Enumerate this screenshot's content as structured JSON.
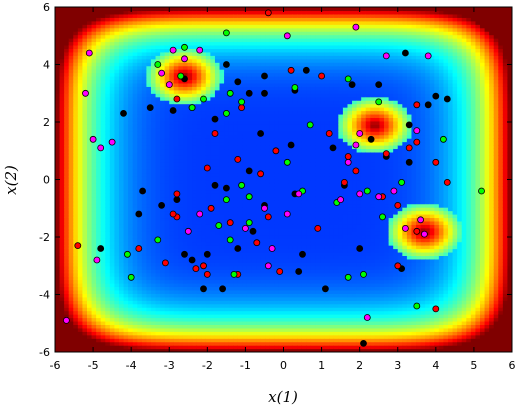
{
  "chart_data": {
    "type": "scatter",
    "title": "",
    "xlabel": "x(1)",
    "ylabel": "x(2)",
    "xlim": [
      -6,
      6
    ],
    "ylim": [
      -6,
      6
    ],
    "xticks": [
      "-6",
      "-5",
      "-4",
      "-3",
      "-2",
      "-1",
      "0",
      "1",
      "2",
      "3",
      "4",
      "5",
      "6"
    ],
    "yticks": [
      "-6",
      "-4",
      "-2",
      "0",
      "2",
      "4",
      "6"
    ],
    "background": "heatmap",
    "background_peaks": [
      {
        "x": -2.6,
        "y": 3.6
      },
      {
        "x": 2.4,
        "y": 1.9
      },
      {
        "x": 3.7,
        "y": -1.8
      }
    ],
    "grid": false,
    "legend": "none",
    "colors": {
      "black": "#000000",
      "red": "#ff0000",
      "green": "#00ff00",
      "magenta": "#ff00ff"
    },
    "series": [
      {
        "color": "black",
        "points": [
          [
            -4.2,
            2.3
          ],
          [
            -3.5,
            2.5
          ],
          [
            -2.9,
            2.4
          ],
          [
            -2.4,
            2.5
          ],
          [
            -1.5,
            4.0
          ],
          [
            -1.2,
            3.4
          ],
          [
            -0.9,
            3.0
          ],
          [
            -0.5,
            3.6
          ],
          [
            -0.5,
            3.0
          ],
          [
            0.3,
            3.1
          ],
          [
            0.6,
            3.8
          ],
          [
            1.8,
            3.3
          ],
          [
            2.5,
            3.3
          ],
          [
            3.2,
            4.4
          ],
          [
            3.8,
            2.6
          ],
          [
            4.0,
            2.9
          ],
          [
            4.3,
            2.8
          ],
          [
            2.3,
            1.4
          ],
          [
            3.3,
            1.9
          ],
          [
            -2.6,
            3.5
          ],
          [
            -1.8,
            2.1
          ],
          [
            -0.6,
            1.6
          ],
          [
            0.2,
            1.2
          ],
          [
            1.3,
            1.1
          ],
          [
            2.7,
            0.8
          ],
          [
            3.3,
            0.6
          ],
          [
            -3.7,
            -0.4
          ],
          [
            -3.2,
            -0.9
          ],
          [
            -2.8,
            -0.7
          ],
          [
            -1.8,
            -0.2
          ],
          [
            -1.5,
            -0.3
          ],
          [
            -0.9,
            0.3
          ],
          [
            -0.5,
            -0.9
          ],
          [
            0.3,
            -0.5
          ],
          [
            1.6,
            -0.2
          ],
          [
            -4.8,
            -2.4
          ],
          [
            -3.8,
            -1.2
          ],
          [
            -2.6,
            -2.6
          ],
          [
            -2.4,
            -2.8
          ],
          [
            -2.0,
            -2.6
          ],
          [
            -1.2,
            -2.4
          ],
          [
            -1.6,
            -3.8
          ],
          [
            -2.1,
            -3.8
          ],
          [
            -0.8,
            -1.8
          ],
          [
            0.5,
            -2.6
          ],
          [
            0.4,
            -3.2
          ],
          [
            1.1,
            -3.8
          ],
          [
            2.0,
            -2.4
          ],
          [
            3.1,
            -3.1
          ],
          [
            2.1,
            -5.7
          ]
        ]
      },
      {
        "color": "red",
        "points": [
          [
            -0.4,
            5.8
          ],
          [
            0.2,
            3.8
          ],
          [
            1.0,
            3.6
          ],
          [
            -1.1,
            2.5
          ],
          [
            -2.8,
            2.8
          ],
          [
            3.5,
            2.6
          ],
          [
            3.3,
            1.1
          ],
          [
            3.5,
            1.3
          ],
          [
            -2.0,
            0.4
          ],
          [
            -1.8,
            1.6
          ],
          [
            -1.2,
            0.7
          ],
          [
            -0.2,
            1.0
          ],
          [
            1.2,
            1.6
          ],
          [
            1.9,
            0.3
          ],
          [
            2.7,
            0.9
          ],
          [
            4.0,
            0.6
          ],
          [
            4.3,
            -0.1
          ],
          [
            1.6,
            -0.1
          ],
          [
            -2.8,
            -0.5
          ],
          [
            -2.8,
            -1.3
          ],
          [
            -1.9,
            -1.0
          ],
          [
            -1.4,
            -1.5
          ],
          [
            -0.4,
            -1.3
          ],
          [
            -0.7,
            -2.2
          ],
          [
            0.9,
            -1.7
          ],
          [
            -3.8,
            -2.4
          ],
          [
            -2.9,
            -1.2
          ],
          [
            -2.3,
            -3.1
          ],
          [
            -2.1,
            -3.0
          ],
          [
            -3.1,
            -2.9
          ],
          [
            -2.0,
            -3.3
          ],
          [
            -1.2,
            -3.3
          ],
          [
            -0.1,
            -3.2
          ],
          [
            -5.4,
            -2.3
          ],
          [
            2.6,
            -0.6
          ],
          [
            3.0,
            -0.9
          ],
          [
            3.0,
            -3.0
          ],
          [
            3.5,
            -1.8
          ],
          [
            4.0,
            -4.5
          ],
          [
            -0.6,
            0.2
          ],
          [
            1.7,
            0.8
          ]
        ]
      },
      {
        "color": "green",
        "points": [
          [
            -1.5,
            5.1
          ],
          [
            -2.7,
            3.6
          ],
          [
            -2.1,
            2.8
          ],
          [
            -1.4,
            3.0
          ],
          [
            -1.1,
            2.7
          ],
          [
            -2.4,
            2.5
          ],
          [
            -3.3,
            4.0
          ],
          [
            0.3,
            3.2
          ],
          [
            1.7,
            3.5
          ],
          [
            2.5,
            2.7
          ],
          [
            4.2,
            1.4
          ],
          [
            0.7,
            1.9
          ],
          [
            -2.6,
            4.6
          ],
          [
            -1.5,
            2.3
          ],
          [
            0.1,
            0.6
          ],
          [
            -1.5,
            -0.7
          ],
          [
            -1.1,
            -0.2
          ],
          [
            -0.9,
            -0.6
          ],
          [
            -1.7,
            -1.6
          ],
          [
            -1.4,
            -2.1
          ],
          [
            -3.3,
            -2.1
          ],
          [
            0.5,
            -0.4
          ],
          [
            1.4,
            -0.8
          ],
          [
            2.2,
            -0.4
          ],
          [
            3.1,
            -0.1
          ],
          [
            5.2,
            -0.4
          ],
          [
            2.6,
            -1.3
          ],
          [
            -4.1,
            -2.6
          ],
          [
            -4.0,
            -3.4
          ],
          [
            1.7,
            -3.4
          ],
          [
            2.1,
            -3.3
          ],
          [
            -1.3,
            -3.3
          ],
          [
            3.5,
            -4.4
          ],
          [
            -0.9,
            -1.5
          ]
        ]
      },
      {
        "color": "magenta",
        "points": [
          [
            -5.1,
            4.4
          ],
          [
            -2.9,
            4.5
          ],
          [
            -2.2,
            4.5
          ],
          [
            0.1,
            5.0
          ],
          [
            1.9,
            5.3
          ],
          [
            -3.2,
            3.7
          ],
          [
            -2.6,
            4.2
          ],
          [
            -3.0,
            3.3
          ],
          [
            -5.2,
            3.0
          ],
          [
            -4.5,
            1.3
          ],
          [
            -4.8,
            1.1
          ],
          [
            -5.0,
            1.4
          ],
          [
            2.7,
            4.3
          ],
          [
            3.8,
            4.3
          ],
          [
            2.0,
            1.6
          ],
          [
            1.9,
            1.2
          ],
          [
            2.5,
            -0.6
          ],
          [
            2.9,
            -0.4
          ],
          [
            3.5,
            1.7
          ],
          [
            1.7,
            0.6
          ],
          [
            2.0,
            -0.5
          ],
          [
            0.4,
            -0.5
          ],
          [
            -0.5,
            -1.0
          ],
          [
            1.5,
            -0.7
          ],
          [
            0.1,
            -1.2
          ],
          [
            -2.5,
            -1.8
          ],
          [
            3.2,
            -1.7
          ],
          [
            3.6,
            -1.4
          ],
          [
            3.7,
            -1.9
          ],
          [
            -4.9,
            -2.8
          ],
          [
            -0.4,
            -3.0
          ],
          [
            2.2,
            -4.8
          ],
          [
            -5.7,
            -4.9
          ],
          [
            -1.0,
            -1.7
          ],
          [
            -2.2,
            -1.2
          ],
          [
            -0.3,
            -2.4
          ]
        ]
      }
    ]
  }
}
